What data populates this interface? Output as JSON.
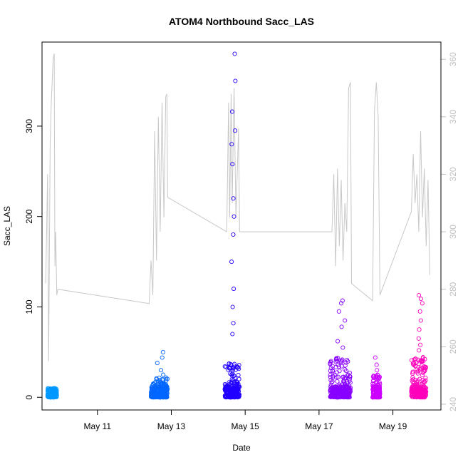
{
  "chart_data": {
    "type": "scatter",
    "title": "ATOM4 Northbound Sacc_LAS",
    "xlabel": "Date",
    "ylabel": "Sacc_LAS",
    "y2label": "",
    "x_ticks": [
      {
        "label": "May 11",
        "day": 11
      },
      {
        "label": "May 13",
        "day": 13
      },
      {
        "label": "May 15",
        "day": 15
      },
      {
        "label": "May 17",
        "day": 17
      },
      {
        "label": "May 19",
        "day": 19
      }
    ],
    "y_ticks": [
      0,
      100,
      200,
      300
    ],
    "y2_ticks": [
      240,
      260,
      280,
      300,
      320,
      340,
      360
    ],
    "xlim_day": [
      9.5,
      20.3
    ],
    "ylim": [
      -14,
      393
    ],
    "y2lim": [
      238,
      366
    ],
    "grid": false,
    "colors": {
      "background_line": "#c8c8c8",
      "frame": "#000000",
      "right_axis": "#c0c0c0"
    },
    "series": [
      {
        "color": "#0099ff",
        "clusters": [
          {
            "x_start": 9.65,
            "x_end": 9.9,
            "y_max": 10,
            "outliers": []
          }
        ]
      },
      {
        "color": "#0066ff",
        "clusters": [
          {
            "x_start": 12.45,
            "x_end": 12.9,
            "y_max": 22,
            "outliers": [
              25,
              30,
              38,
              44,
              50
            ]
          }
        ]
      },
      {
        "color": "#2200ff",
        "clusters": [
          {
            "x_start": 14.45,
            "x_end": 14.85,
            "y_max": 40,
            "outliers": [
              70,
              82,
              100,
              120,
              150,
              180,
              200,
              220,
              258,
              280,
              295,
              316,
              350,
              380
            ]
          }
        ]
      },
      {
        "color": "#8800ff",
        "clusters": [
          {
            "x_start": 17.3,
            "x_end": 17.85,
            "y_max": 45,
            "outliers": [
              55,
              62,
              78,
              85,
              95,
              104,
              107
            ]
          }
        ]
      },
      {
        "color": "#cc00ff",
        "clusters": [
          {
            "x_start": 18.45,
            "x_end": 18.65,
            "y_max": 25,
            "outliers": [
              30,
              36,
              44
            ]
          }
        ]
      },
      {
        "color": "#ff00bb",
        "clusters": [
          {
            "x_start": 19.5,
            "x_end": 19.9,
            "y_max": 45,
            "outliers": [
              52,
              58,
              65,
              75,
              85,
              95,
              104,
              109,
              113
            ]
          }
        ]
      }
    ],
    "secondary_line": {
      "name": "",
      "points": [
        [
          9.6,
          282
        ],
        [
          9.65,
          320
        ],
        [
          9.68,
          255
        ],
        [
          9.72,
          330
        ],
        [
          9.75,
          345
        ],
        [
          9.8,
          360
        ],
        [
          9.83,
          362
        ],
        [
          9.85,
          288
        ],
        [
          9.87,
          300
        ],
        [
          9.9,
          278
        ],
        [
          9.93,
          280
        ],
        [
          12.4,
          275
        ],
        [
          12.45,
          290
        ],
        [
          12.5,
          278
        ],
        [
          12.55,
          335
        ],
        [
          12.6,
          290
        ],
        [
          12.65,
          340
        ],
        [
          12.7,
          300
        ],
        [
          12.75,
          345
        ],
        [
          12.8,
          305
        ],
        [
          12.85,
          347
        ],
        [
          12.88,
          348
        ],
        [
          12.9,
          312
        ],
        [
          14.5,
          300
        ],
        [
          14.55,
          345
        ],
        [
          14.58,
          305
        ],
        [
          14.62,
          348
        ],
        [
          14.65,
          310
        ],
        [
          14.7,
          350
        ],
        [
          14.75,
          305
        ],
        [
          14.82,
          336
        ],
        [
          14.85,
          300
        ],
        [
          17.35,
          300
        ],
        [
          17.4,
          320
        ],
        [
          17.45,
          288
        ],
        [
          17.5,
          322
        ],
        [
          17.55,
          295
        ],
        [
          17.6,
          318
        ],
        [
          17.65,
          290
        ],
        [
          17.7,
          310
        ],
        [
          17.75,
          300
        ],
        [
          17.8,
          350
        ],
        [
          17.85,
          352
        ],
        [
          17.88,
          282
        ],
        [
          18.45,
          276
        ],
        [
          18.5,
          342
        ],
        [
          18.55,
          352
        ],
        [
          18.6,
          340
        ],
        [
          18.65,
          278
        ],
        [
          19.5,
          307
        ],
        [
          19.55,
          327
        ],
        [
          19.6,
          310
        ],
        [
          19.65,
          320
        ],
        [
          19.7,
          300
        ],
        [
          19.75,
          335
        ],
        [
          19.8,
          305
        ],
        [
          19.85,
          322
        ],
        [
          19.9,
          295
        ],
        [
          19.95,
          318
        ],
        [
          20.0,
          285
        ]
      ]
    }
  }
}
